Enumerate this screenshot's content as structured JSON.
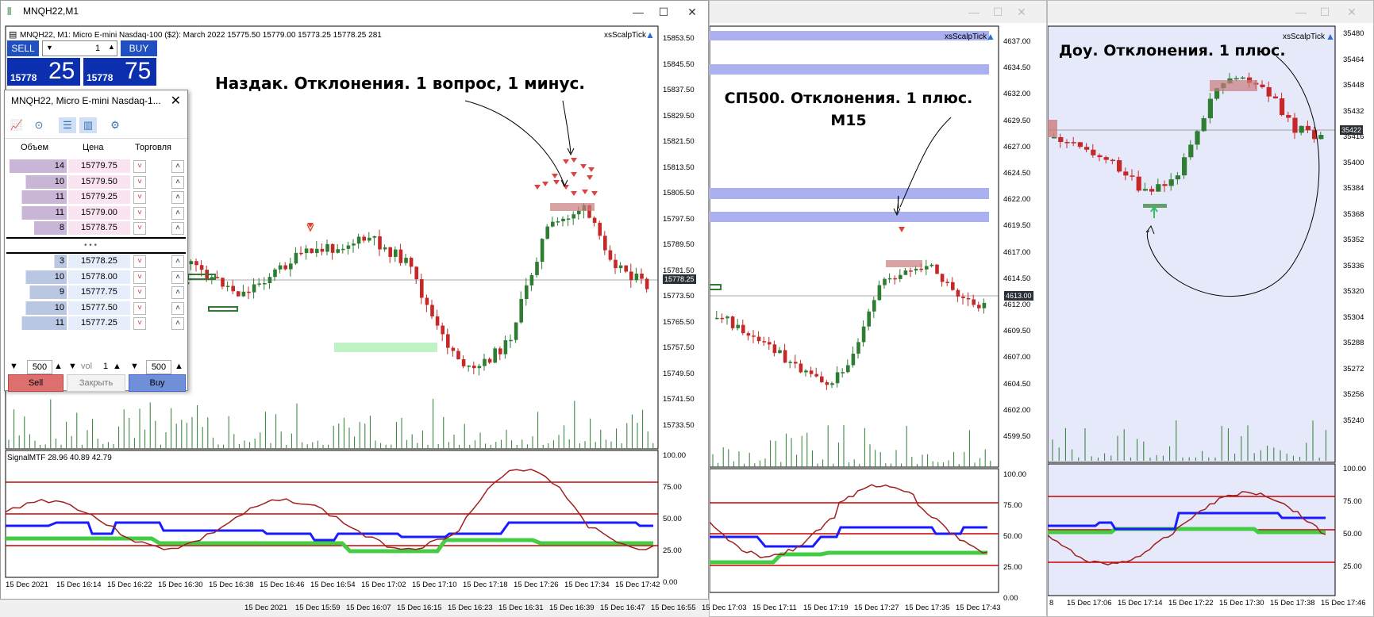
{
  "win1": {
    "title": "MNQH22,M1",
    "info": "MNQH22, M1:  Micro E-mini Nasdaq-100 ($2): March 2022   15775.50  15779.00  15773.25  15778.25   281",
    "indicator_label": "xsScalpTick",
    "annotation": "Наздак. Отклонения. 1 вопрос, 1 минус.",
    "price_axis": [
      "15853.50",
      "15845.50",
      "15837.50",
      "15829.50",
      "15821.50",
      "15813.50",
      "15805.50",
      "15797.50",
      "15789.50",
      "15781.50",
      "15773.50",
      "15765.50",
      "15757.50",
      "15749.50",
      "15741.50",
      "15733.50"
    ],
    "current_price": "15778.25",
    "osc_label": "SignalMTF 28.96  40.89  42.79",
    "osc_axis": [
      "100.00",
      "75.00",
      "50.00",
      "25.00",
      "0.00"
    ],
    "time_axis": [
      "15 Dec 2021",
      "15 Dec 16:14",
      "15 Dec 16:22",
      "15 Dec 16:30",
      "15 Dec 16:38",
      "15 Dec 16:46",
      "15 Dec 16:54",
      "15 Dec 17:02",
      "15 Dec 17:10",
      "15 Dec 17:18",
      "15 Dec 17:26",
      "15 Dec 17:34",
      "15 Dec 17:42"
    ]
  },
  "trade_panel": {
    "sell_label": "SELL",
    "buy_label": "BUY",
    "lot": "1",
    "bid_small": "15778",
    "bid_big": "25",
    "ask_small": "15778",
    "ask_big": "75"
  },
  "dom": {
    "title": "MNQH22, Micro E-mini Nasdaq-1...",
    "col_volume": "Объем",
    "col_price": "Цена",
    "col_trade": "Торговля",
    "asks": [
      {
        "vol": "14",
        "price": "15779.75"
      },
      {
        "vol": "10",
        "price": "15779.50"
      },
      {
        "vol": "11",
        "price": "15779.25"
      },
      {
        "vol": "11",
        "price": "15779.00"
      },
      {
        "vol": "8",
        "price": "15778.75"
      }
    ],
    "bids": [
      {
        "vol": "3",
        "price": "15778.25"
      },
      {
        "vol": "10",
        "price": "15778.00"
      },
      {
        "vol": "9",
        "price": "15777.75"
      },
      {
        "vol": "10",
        "price": "15777.50"
      },
      {
        "vol": "11",
        "price": "15777.25"
      }
    ],
    "ellipsis": "• • •",
    "qty_left": "500",
    "vol_label": "vol",
    "vol_value": "1",
    "qty_right": "500",
    "sell_button": "Sell",
    "close_button": "Закрыть",
    "buy_button": "Buy"
  },
  "win2": {
    "indicator_label": "xsScalpTick",
    "annotation_line1": "СП500. Отклонения. 1 плюс.",
    "annotation_line2": "М15",
    "price_axis": [
      "4637.00",
      "4634.50",
      "4632.00",
      "4629.50",
      "4627.00",
      "4624.50",
      "4622.00",
      "4619.50",
      "4617.00",
      "4614.50",
      "4612.00",
      "4609.50",
      "4607.00",
      "4604.50",
      "4602.00",
      "4599.50"
    ],
    "current_price": "4613.00",
    "osc_axis": [
      "100.00",
      "75.00",
      "50.00",
      "25.00",
      "0.00"
    ],
    "time_axis": [
      "15 Dec 2021",
      "15 Dec 15:59",
      "15 Dec 16:07",
      "15 Dec 16:15",
      "15 Dec 16:23",
      "15 Dec 16:31",
      "15 Dec 16:39",
      "15 Dec 16:47",
      "15 Dec 16:55",
      "15 Dec 17:03",
      "15 Dec 17:11",
      "15 Dec 17:19",
      "15 Dec 17:27",
      "15 Dec 17:35",
      "15 Dec 17:43"
    ]
  },
  "win3": {
    "indicator_label": "xsScalpTick",
    "annotation": "Доу. Отклонения. 1 плюс.",
    "price_axis": [
      "35480",
      "35464",
      "35448",
      "35432",
      "35416",
      "35400",
      "35384",
      "35368",
      "35352",
      "35336",
      "35320",
      "35304",
      "35288",
      "35272",
      "35256",
      "35240"
    ],
    "current_price": "35422",
    "osc_axis": [
      "100.00",
      "75.00",
      "50.00",
      "25.00"
    ],
    "time_axis": [
      "8",
      "15 Dec 17:06",
      "15 Dec 17:14",
      "15 Dec 17:22",
      "15 Dec 17:30",
      "15 Dec 17:38",
      "15 Dec 17:46"
    ]
  },
  "colors": {
    "bull": "#2e7d32",
    "bear": "#c62828",
    "osc_red": "#cc0000",
    "osc_blue": "#1a1aff",
    "osc_green": "#44cc44",
    "osc_brown": "#a02020",
    "band": "#aab0f0"
  }
}
